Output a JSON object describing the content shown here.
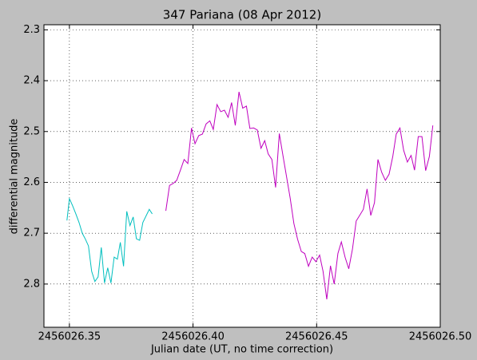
{
  "chart_data": {
    "type": "line",
    "title": "347 Pariana (08 Apr 2012)",
    "xlabel": "Julian date (UT, no time correction)",
    "ylabel": "differential magnitude",
    "xlim": [
      2456026.3397,
      2456026.5
    ],
    "ylim": [
      2.885,
      2.29
    ],
    "xticks": [
      2456026.35,
      {
        "value": 2456026.4,
        "label": "2456026.40"
      },
      2456026.45,
      {
        "value": 2456026.5,
        "label": "2456026.50"
      }
    ],
    "yticks": [
      2.3,
      2.4,
      2.5,
      2.6,
      2.7,
      2.8
    ],
    "grid": true,
    "series": [
      {
        "color": "#00bfbf",
        "x": [
          2456026.349,
          2456026.35,
          2456026.3513,
          2456026.3526,
          2456026.3539,
          2456026.3552,
          2456026.3565,
          2456026.3577,
          2456026.359,
          2456026.3603,
          2456026.3616,
          2456026.3629,
          2456026.3642,
          2456026.3655,
          2456026.3668,
          2456026.3681,
          2456026.3694,
          2456026.3706,
          2456026.3719,
          2456026.3732,
          2456026.3745,
          2456026.3758,
          2456026.3771,
          2456026.3784,
          2456026.3797,
          2456026.3823,
          2456026.3835
        ],
        "values": [
          2.675,
          2.632,
          2.646,
          2.662,
          2.679,
          2.7,
          2.712,
          2.725,
          2.775,
          2.795,
          2.786,
          2.728,
          2.798,
          2.768,
          2.798,
          2.747,
          2.751,
          2.718,
          2.765,
          2.657,
          2.685,
          2.668,
          2.711,
          2.714,
          2.679,
          2.653,
          2.662
        ]
      },
      {
        "color": "#bf00bf",
        "x": [
          2456026.389,
          2456026.3905,
          2456026.392,
          2456026.3934,
          2456026.3949,
          2456026.3964,
          2456026.3979,
          2456026.3994,
          2456026.4008,
          2456026.4023,
          2456026.4038,
          2456026.4053,
          2456026.4068,
          2456026.4082,
          2456026.4097,
          2456026.4112,
          2456026.4127,
          2456026.4142,
          2456026.4156,
          2456026.4171,
          2456026.4186,
          2456026.4201,
          2456026.4216,
          2456026.423,
          2456026.4245,
          2456026.426,
          2456026.4275,
          2456026.429,
          2456026.4304,
          2456026.4319,
          2456026.4334,
          2456026.4349,
          2456026.4364,
          2456026.4378,
          2456026.4393,
          2456026.4408,
          2456026.4423,
          2456026.4438,
          2456026.4452,
          2456026.4467,
          2456026.4482,
          2456026.4497,
          2456026.4512,
          2456026.4526,
          2456026.4541,
          2456026.4556,
          2456026.4571,
          2456026.4586,
          2456026.46,
          2456026.4615,
          2456026.463,
          2456026.4645,
          2456026.466,
          2456026.4674,
          2456026.4689,
          2456026.4704,
          2456026.4719,
          2456026.4734,
          2456026.4748,
          2456026.4763,
          2456026.4778,
          2456026.4793,
          2456026.4808,
          2456026.4822,
          2456026.4837,
          2456026.4852,
          2456026.4867,
          2456026.4882,
          2456026.4896,
          2456026.4911,
          2456026.4926,
          2456026.4941,
          2456026.4956,
          2456026.497
        ],
        "values": [
          2.656,
          2.606,
          2.602,
          2.596,
          2.576,
          2.555,
          2.563,
          2.493,
          2.524,
          2.508,
          2.505,
          2.485,
          2.479,
          2.496,
          2.447,
          2.461,
          2.458,
          2.472,
          2.443,
          2.488,
          2.422,
          2.454,
          2.45,
          2.494,
          2.493,
          2.497,
          2.533,
          2.518,
          2.544,
          2.555,
          2.61,
          2.504,
          2.548,
          2.588,
          2.631,
          2.681,
          2.712,
          2.736,
          2.74,
          2.765,
          2.747,
          2.756,
          2.743,
          2.775,
          2.83,
          2.764,
          2.8,
          2.74,
          2.717,
          2.747,
          2.77,
          2.731,
          2.676,
          2.665,
          2.653,
          2.613,
          2.665,
          2.64,
          2.555,
          2.58,
          2.596,
          2.584,
          2.549,
          2.505,
          2.493,
          2.537,
          2.56,
          2.547,
          2.576,
          2.51,
          2.51,
          2.577,
          2.549,
          2.488
        ]
      }
    ]
  }
}
